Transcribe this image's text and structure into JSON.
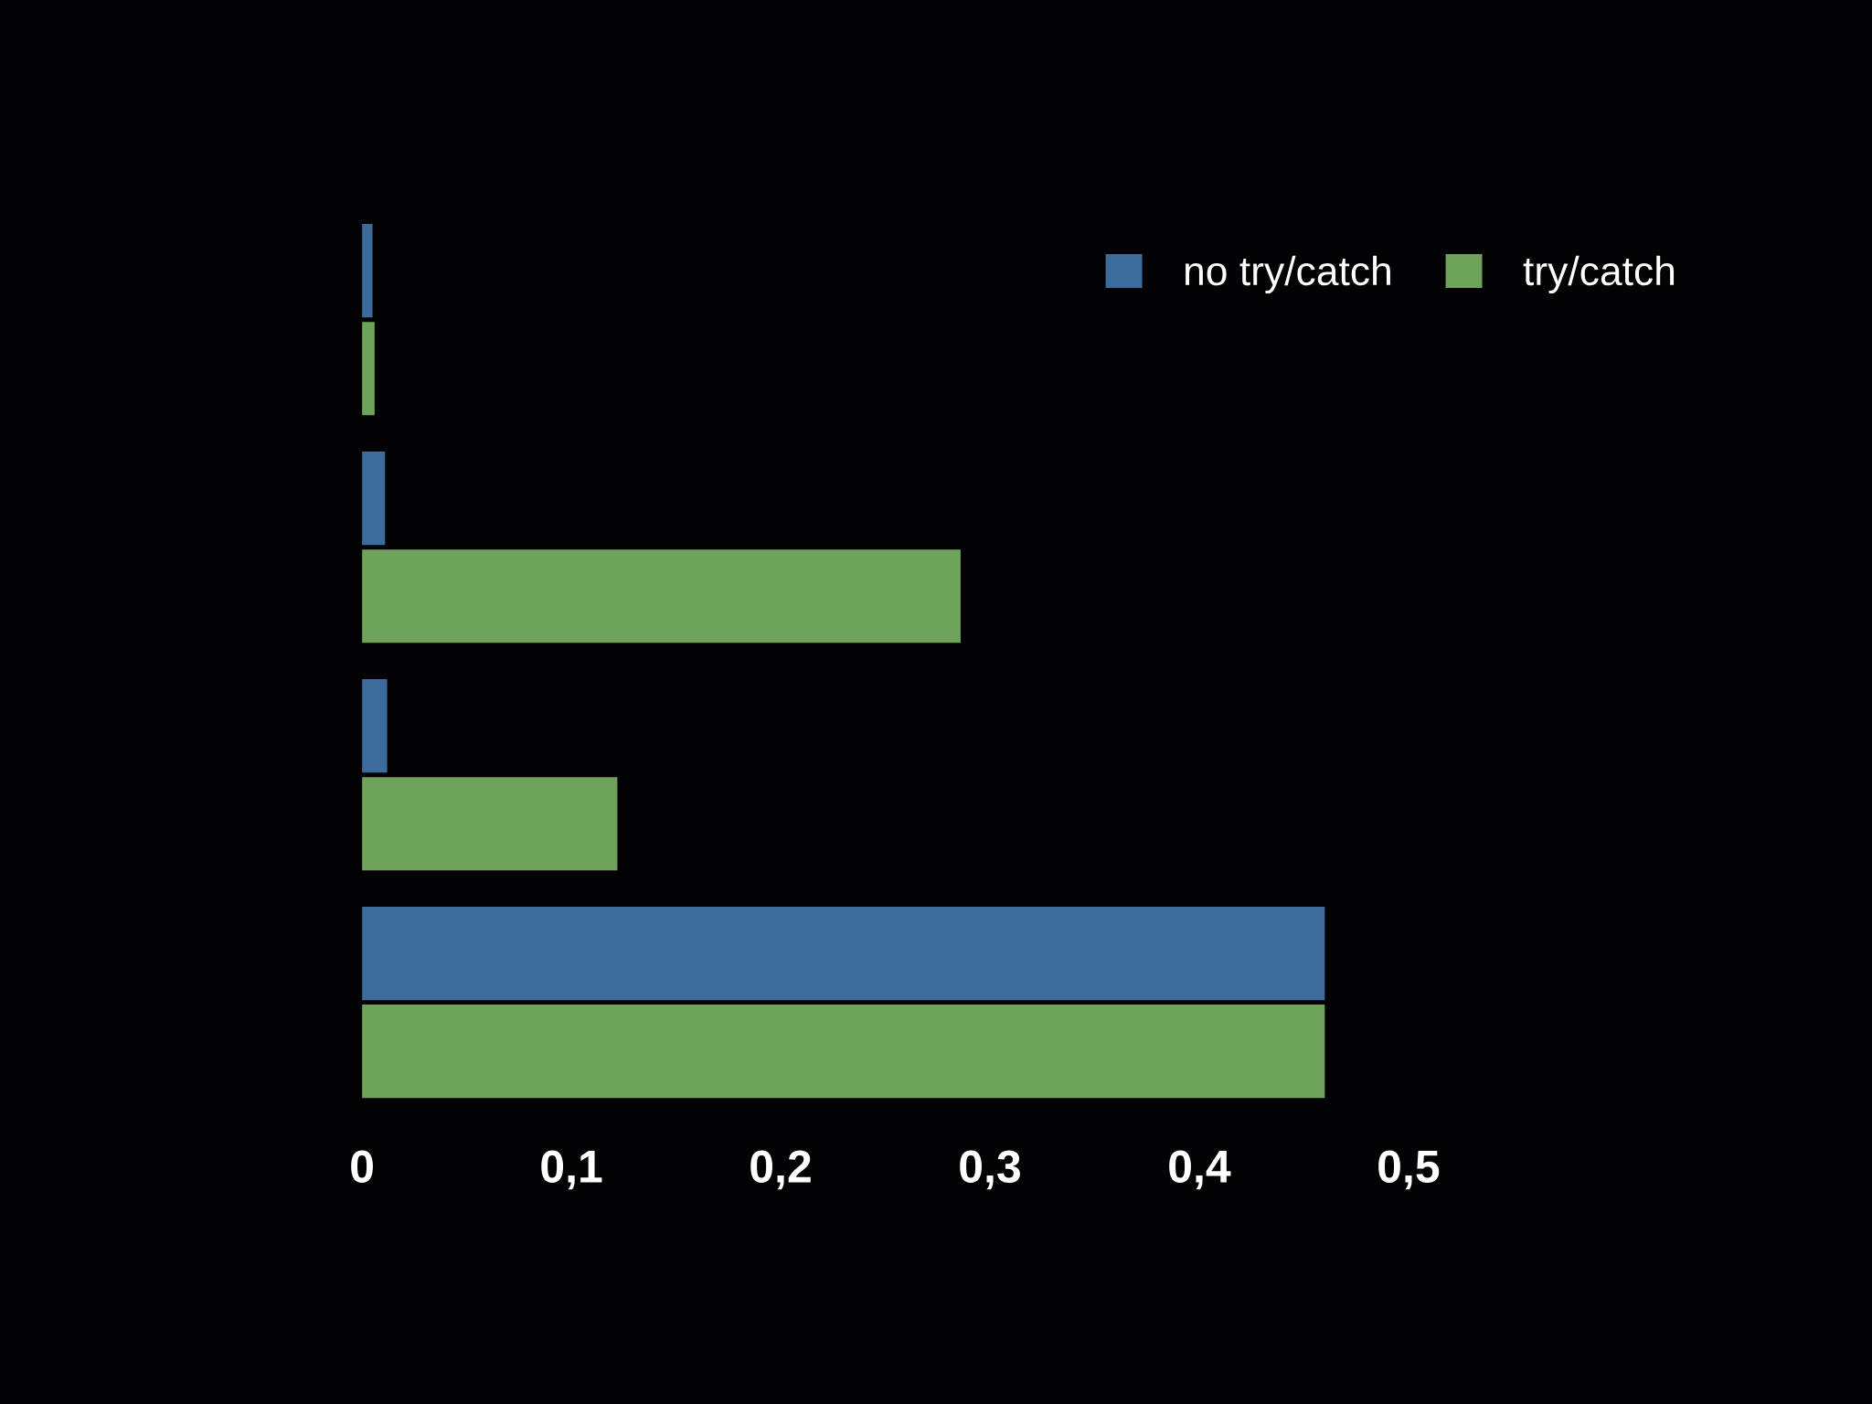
{
  "chart_data": {
    "type": "bar",
    "orientation": "horizontal",
    "categories": [
      null,
      null,
      null,
      null
    ],
    "series": [
      {
        "name": "no try/catch",
        "color": "#3d6b9b",
        "values": [
          0.005,
          0.011,
          0.012,
          0.46
        ]
      },
      {
        "name": "try/catch",
        "color": "#6fa35c",
        "values": [
          0.006,
          0.286,
          0.122,
          0.46
        ]
      }
    ],
    "xlim": [
      0,
      0.5
    ],
    "xticks": [
      0,
      {
        "value": 0.1,
        "label": "0,1"
      },
      {
        "value": 0.2,
        "label": "0,2"
      },
      {
        "value": 0.3,
        "label": "0,3"
      },
      {
        "value": 0.4,
        "label": "0,4"
      },
      {
        "value": 0.5,
        "label": "0,5"
      }
    ],
    "legend": "top right",
    "tick_labels": "x"
  }
}
